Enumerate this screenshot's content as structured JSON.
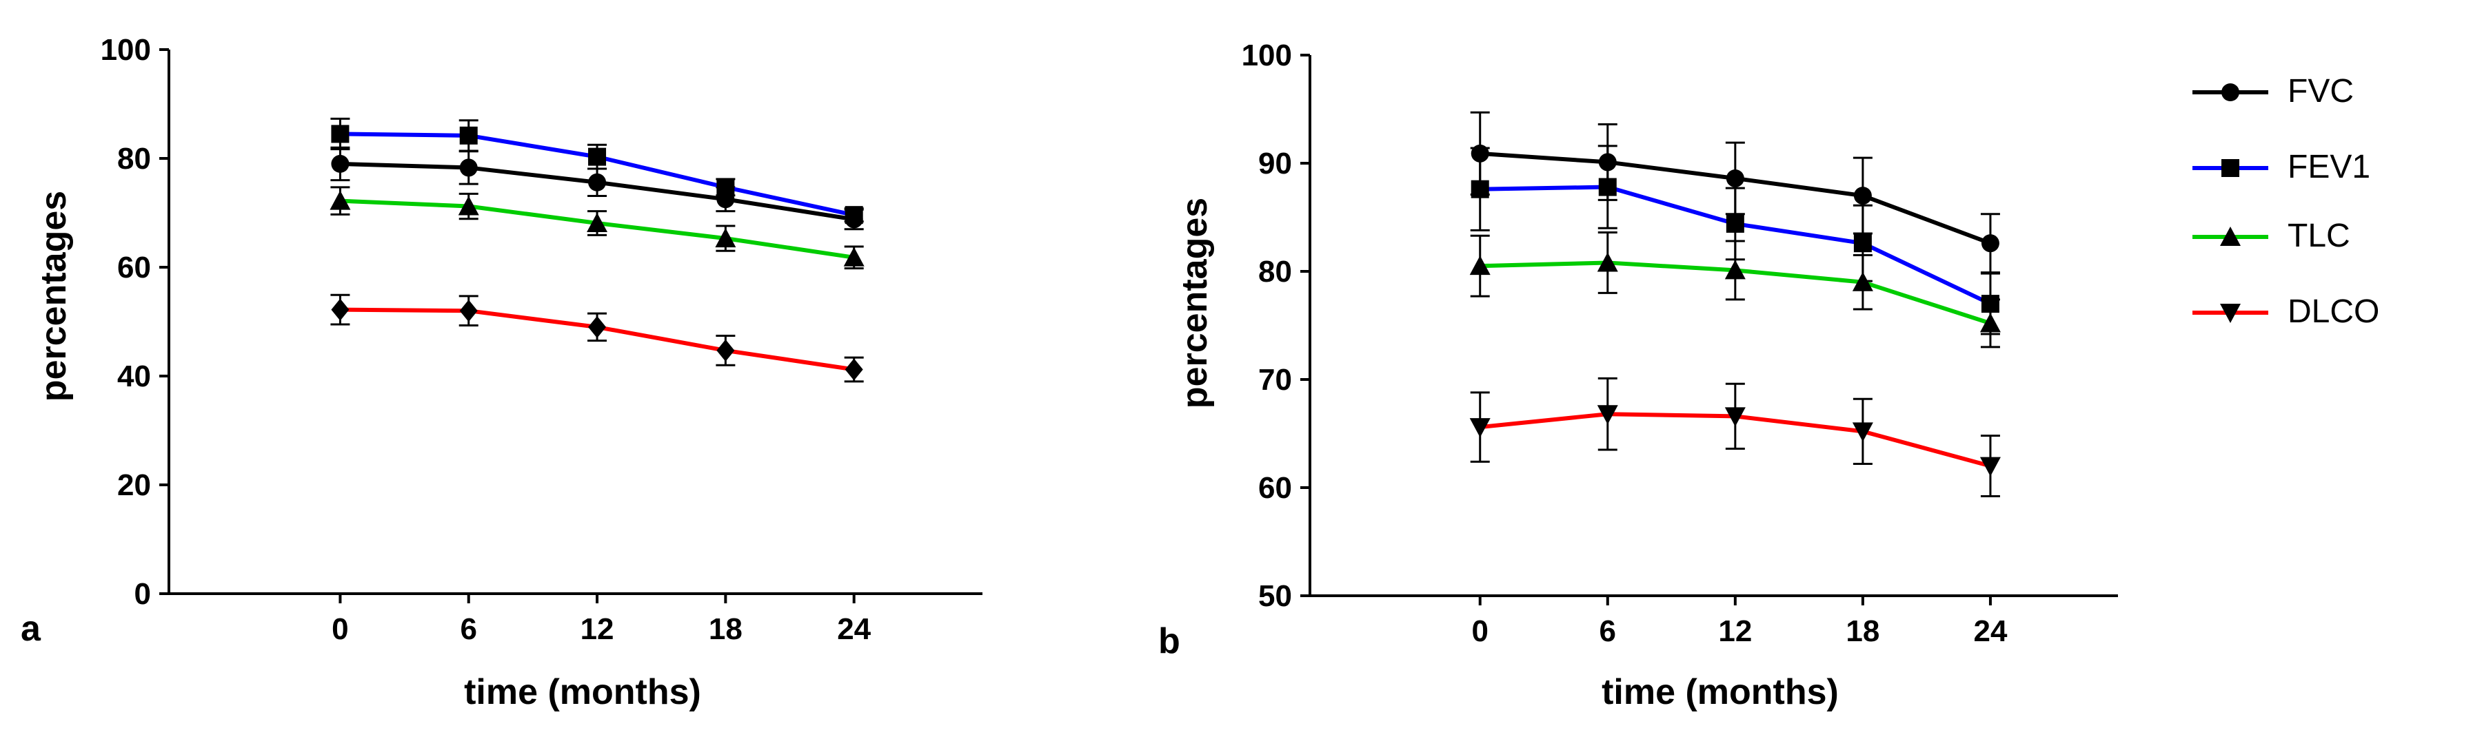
{
  "chart_data": [
    {
      "type": "line",
      "panel_label": "a",
      "xlabel": "time (months)",
      "ylabel": "percentages",
      "x": [
        0,
        6,
        12,
        18,
        24
      ],
      "x_ticks": [
        "0",
        "6",
        "12",
        "18",
        "24"
      ],
      "xlim": [
        -8,
        30
      ],
      "ylim": [
        0,
        100
      ],
      "y_ticks": [
        "0",
        "20",
        "40",
        "60",
        "80",
        "100"
      ],
      "grid": false,
      "series": [
        {
          "name": "FVC",
          "color": "#000000",
          "marker": "circle",
          "values": [
            79,
            78.3,
            75.6,
            72.5,
            68.8
          ],
          "errors": [
            3.0,
            3.0,
            2.5,
            2.2,
            1.8
          ]
        },
        {
          "name": "FEV1",
          "color": "#0000ff",
          "marker": "square",
          "values": [
            84.5,
            84.2,
            80.3,
            74.7,
            69.6
          ],
          "errors": [
            2.8,
            2.8,
            2.2,
            1.5,
            1.2
          ]
        },
        {
          "name": "TLC",
          "color": "#00cc00",
          "marker": "triangle-up",
          "values": [
            72.2,
            71.2,
            68.1,
            65.3,
            61.8
          ],
          "errors": [
            2.5,
            2.3,
            2.2,
            2.3,
            2.0
          ]
        },
        {
          "name": "DLCO",
          "color": "#ff0000",
          "marker": "diamond",
          "values": [
            52.2,
            52.0,
            49.0,
            44.7,
            41.2
          ],
          "errors": [
            2.7,
            2.7,
            2.5,
            2.7,
            2.2
          ]
        }
      ]
    },
    {
      "type": "line",
      "panel_label": "b",
      "xlabel": "time (months)",
      "ylabel": "percentages",
      "x": [
        0,
        6,
        12,
        18,
        24
      ],
      "x_ticks": [
        "0",
        "6",
        "12",
        "18",
        "24"
      ],
      "xlim": [
        -8,
        30
      ],
      "ylim": [
        50,
        100
      ],
      "y_ticks": [
        "50",
        "60",
        "70",
        "80",
        "90",
        "100"
      ],
      "grid": false,
      "legend": "right",
      "series": [
        {
          "name": "FVC",
          "color": "#000000",
          "marker": "circle",
          "values": [
            90.9,
            90.1,
            88.6,
            87.0,
            82.6
          ],
          "errors": [
            3.8,
            3.5,
            3.3,
            3.5,
            2.7
          ]
        },
        {
          "name": "FEV1",
          "color": "#0000ff",
          "marker": "square",
          "values": [
            87.6,
            87.8,
            84.4,
            82.6,
            77.0
          ],
          "errors": [
            3.8,
            3.8,
            3.3,
            3.5,
            2.8
          ]
        },
        {
          "name": "TLC",
          "color": "#00cc00",
          "marker": "triangle-up",
          "values": [
            80.5,
            80.8,
            80.1,
            79.0,
            75.2
          ],
          "errors": [
            2.8,
            2.8,
            2.7,
            2.5,
            2.2
          ]
        },
        {
          "name": "DLCO",
          "color": "#ff0000",
          "marker": "triangle-down",
          "values": [
            65.6,
            66.8,
            66.6,
            65.2,
            62.0
          ],
          "errors": [
            3.2,
            3.3,
            3.0,
            3.0,
            2.8
          ]
        }
      ]
    }
  ]
}
